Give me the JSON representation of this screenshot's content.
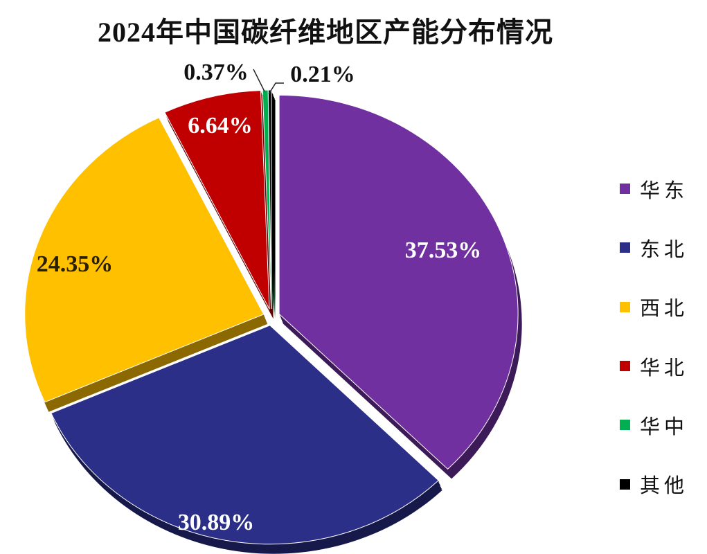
{
  "chart_data": {
    "type": "pie",
    "title": "2024年中国碳纤维地区产能分布情况",
    "slices": [
      {
        "name": "华东",
        "value": 37.53,
        "label": "37.53%",
        "color": "#7030a0"
      },
      {
        "name": "东北",
        "value": 30.89,
        "label": "30.89%",
        "color": "#2b2f88"
      },
      {
        "name": "西北",
        "value": 24.35,
        "label": "24.35%",
        "color": "#ffc000"
      },
      {
        "name": "华北",
        "value": 6.64,
        "label": "6.64%",
        "color": "#c00000"
      },
      {
        "name": "华中",
        "value": 0.37,
        "label": "0.37%",
        "color": "#00b050"
      },
      {
        "name": "其他",
        "value": 0.21,
        "label": "0.21%",
        "color": "#000000"
      }
    ],
    "start_angle": "12 o'clock",
    "direction": "clockwise",
    "exploded": true,
    "style": "3d",
    "legend_position": "right"
  }
}
